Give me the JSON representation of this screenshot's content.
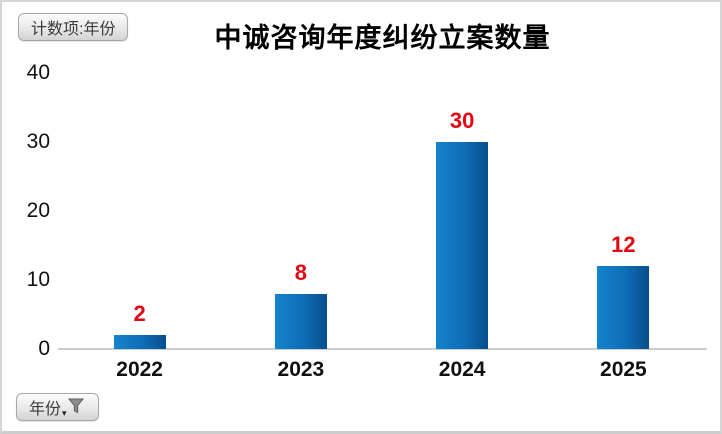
{
  "window": {
    "background": "#ffffff",
    "border_color": "#d6d6d6"
  },
  "pivot_buttons": {
    "value_field_label": "计数项:年份",
    "axis_field_label": "年份",
    "axis_field_icons": [
      "funnel-icon",
      "caret-down-icon"
    ],
    "caret_glyph": "▾"
  },
  "chart_data": {
    "type": "bar",
    "title": "中诚咨询年度纠纷立案数量",
    "categories": [
      "2022",
      "2023",
      "2024",
      "2025"
    ],
    "values": [
      2,
      8,
      30,
      12
    ],
    "data_labels": [
      "2",
      "8",
      "30",
      "12"
    ],
    "xlabel": "",
    "ylabel": "",
    "ylim": [
      0,
      40
    ],
    "yticks": [
      0,
      10,
      20,
      30,
      40
    ],
    "grid": false,
    "legend": false,
    "bar_gradient": [
      "#1583cc",
      "#0e6db6",
      "#084e8c"
    ],
    "data_label_color": "#e30613",
    "axis_line_color": "#cccccc",
    "tick_label_color": "#111111"
  }
}
